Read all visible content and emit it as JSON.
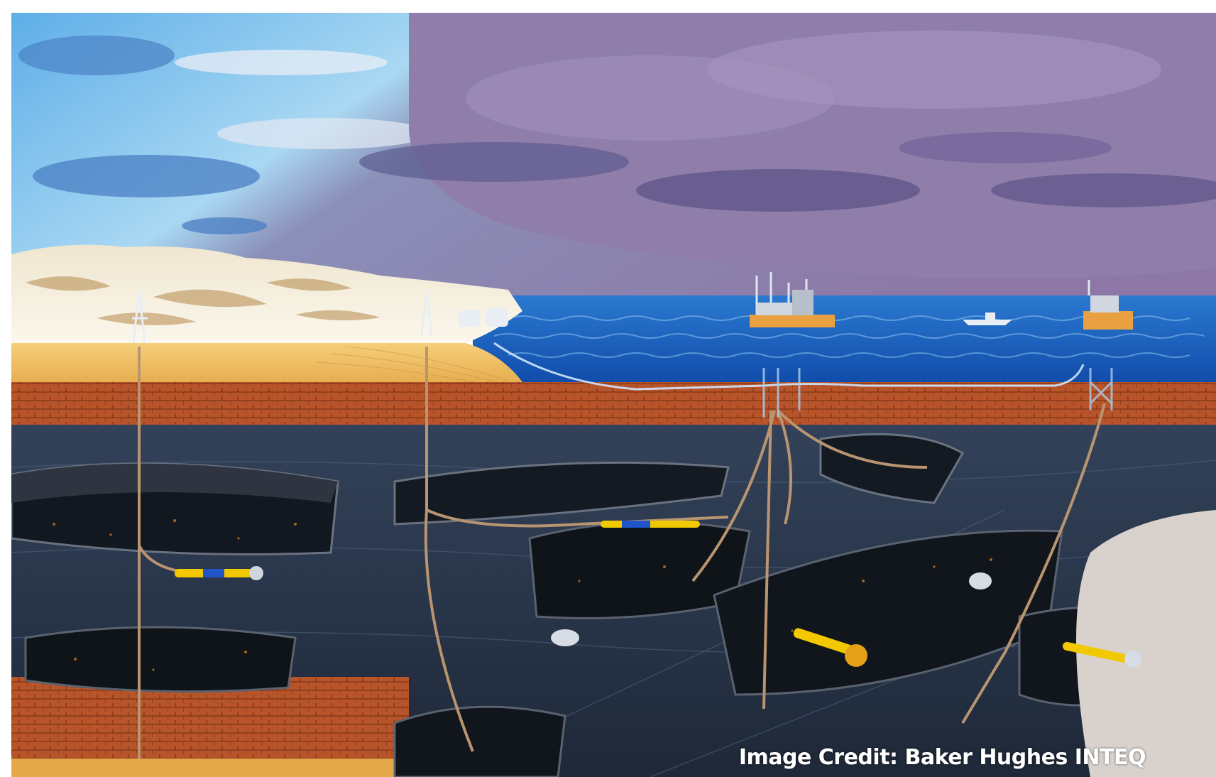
{
  "image": {
    "credit": "Image Credit: Baker Hughes INTEQ"
  },
  "colors": {
    "sky_light": "#6fb6e6",
    "sky_storm": "#8a7aa6",
    "ocean": "#1c5fb8",
    "sand": "#f2c36a",
    "rock_band": "#b04f22",
    "strata": "#2c3a4e",
    "reservoir": "#0f1418",
    "drill_accent": "#f2c800"
  },
  "icons": {
    "onshore_rig": "drilling-rig-icon",
    "offshore_platform": "offshore-platform-icon",
    "tanks": "storage-tank-icon",
    "ship": "supply-ship-icon",
    "drill_bit": "drill-bit-icon"
  }
}
